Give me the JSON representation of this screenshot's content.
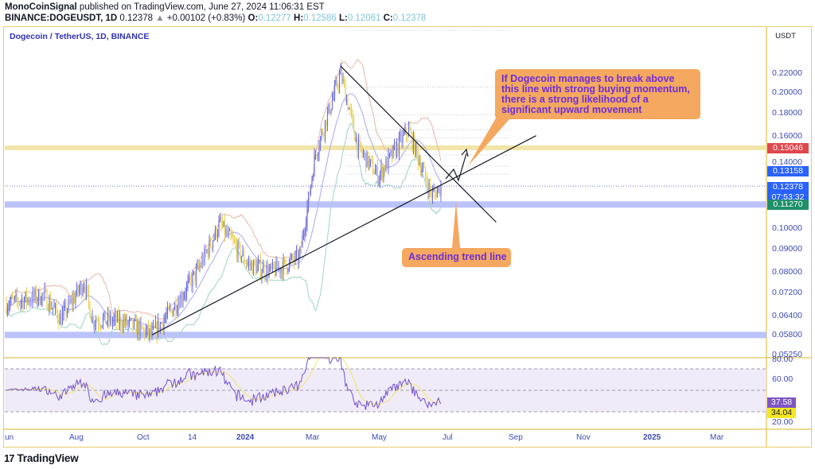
{
  "header": {
    "author": "MonoCoinSignal",
    "published_text": "published on TradingView.com, June 27, 2024 11:06:31 EST",
    "symbol": "BINANCE:DOGEUSDT, 1D",
    "last": "0.12378",
    "change_arrow": "▲",
    "change": "+0.00102 (+0.83%)",
    "o_label": "O:",
    "o": "0.12277",
    "h_label": "H:",
    "h": "0.12586",
    "l_label": "L:",
    "l": "0.12061",
    "c_label": "C:",
    "c": "0.12378"
  },
  "legend": {
    "title": "Dogecoin / TetherUS, 1D, BINANCE"
  },
  "price_scale": {
    "currency": "USDT",
    "ticks": [
      "0.22000",
      "0.20000",
      "0.18000",
      "0.16000",
      "0.14000",
      "0.10000",
      "0.09000",
      "0.08000",
      "0.07200",
      "0.06400",
      "0.05800",
      "0.05250"
    ],
    "badges": [
      {
        "label": "0.15046",
        "color": "#e0474c"
      },
      {
        "label": "0.13158",
        "color": "#2962ff"
      },
      {
        "label": "0.12378",
        "sub": "07:53:32",
        "color": "#2962ff"
      },
      {
        "label": "0.11270",
        "color": "#1f8f6a"
      }
    ]
  },
  "rsi_scale": {
    "ticks": [
      "80.00",
      "60.00",
      "20.00"
    ],
    "badges": [
      {
        "label": "37.58",
        "color": "#7e57c2",
        "text": "#ffffff"
      },
      {
        "label": "34.04",
        "color": "#f5e626",
        "text": "#131722"
      }
    ]
  },
  "time_axis": {
    "labels": [
      {
        "label": "un",
        "x": 6,
        "year": false
      },
      {
        "label": "Aug",
        "x": 87,
        "year": false
      },
      {
        "label": "Oct",
        "x": 172,
        "year": false
      },
      {
        "label": "14",
        "x": 236,
        "year": false
      },
      {
        "label": "2024",
        "x": 297,
        "year": true
      },
      {
        "label": "Mar",
        "x": 384,
        "year": false
      },
      {
        "label": "May",
        "x": 467,
        "year": false
      },
      {
        "label": "Jul",
        "x": 556,
        "year": false
      },
      {
        "label": "Sep",
        "x": 639,
        "year": false
      },
      {
        "label": "Nov",
        "x": 724,
        "year": false
      },
      {
        "label": "2025",
        "x": 808,
        "year": true
      },
      {
        "label": "Mar",
        "x": 892,
        "year": false
      }
    ]
  },
  "annotations": {
    "callout_breakout": "If Dogecoin manages to break above this line with strong buying momentum, there is a strong likelihood of a significant upward movement",
    "callout_trend": "Ascending trend line"
  },
  "footer": {
    "logo": "17",
    "brand": "TradingView"
  },
  "colors": {
    "up_candle": "#6a6ee8",
    "down_candle": "#e6cf52",
    "support_band": "#bcc3fb",
    "resistance_band": "#efe1a0",
    "rsi_line": "#7352c8",
    "rsi_ma": "#f0e46a",
    "bb_upper": "#e5b5a8",
    "bb_basis": "#a8a8f0",
    "bb_lower": "#9fd3c4",
    "frame": "#e3cf6e"
  },
  "chart_data": {
    "type": "candlestick",
    "title": "Dogecoin / TetherUS, 1D, BINANCE",
    "symbol": "BINANCE:DOGEUSDT",
    "interval": "1D",
    "xlabel": "",
    "ylabel": "USDT",
    "y_scale": "log",
    "ylim": [
      0.0525,
      0.235
    ],
    "x_ticks": [
      "Jun",
      "Aug",
      "Oct",
      "14",
      "2024",
      "Mar",
      "May",
      "Jul",
      "Sep",
      "Nov",
      "2025",
      "Mar"
    ],
    "y_ticks": [
      0.22,
      0.2,
      0.18,
      0.16,
      0.14,
      0.1,
      0.09,
      0.08,
      0.072,
      0.064,
      0.058,
      0.0525
    ],
    "ohlc_last": {
      "open": 0.12277,
      "high": 0.12586,
      "low": 0.12061,
      "close": 0.12378,
      "change": 0.00102,
      "change_pct": 0.83
    },
    "approx_close_path": [
      {
        "date": "2023-06",
        "close": 0.068
      },
      {
        "date": "2023-07-05",
        "close": 0.071
      },
      {
        "date": "2023-07-20",
        "close": 0.063
      },
      {
        "date": "2023-08-10",
        "close": 0.076
      },
      {
        "date": "2023-08-17",
        "close": 0.063
      },
      {
        "date": "2023-09-15",
        "close": 0.062
      },
      {
        "date": "2023-10-10",
        "close": 0.058
      },
      {
        "date": "2023-11-01",
        "close": 0.068
      },
      {
        "date": "2023-11-20",
        "close": 0.08
      },
      {
        "date": "2023-12-10",
        "close": 0.102
      },
      {
        "date": "2024-01-05",
        "close": 0.083
      },
      {
        "date": "2024-01-25",
        "close": 0.08
      },
      {
        "date": "2024-02-20",
        "close": 0.086
      },
      {
        "date": "2024-03-05",
        "close": 0.145
      },
      {
        "date": "2024-03-28",
        "close": 0.22
      },
      {
        "date": "2024-04-13",
        "close": 0.15
      },
      {
        "date": "2024-05-01",
        "close": 0.13
      },
      {
        "date": "2024-05-28",
        "close": 0.165
      },
      {
        "date": "2024-06-18",
        "close": 0.118
      },
      {
        "date": "2024-06-27",
        "close": 0.12378
      }
    ],
    "horizontal_levels": [
      {
        "name": "resistance",
        "value": 0.15046
      },
      {
        "name": "support",
        "value": 0.1127
      },
      {
        "name": "major-support",
        "value": 0.058
      }
    ],
    "trendlines": [
      {
        "name": "ascending",
        "from": {
          "date": "2023-10-10",
          "price": 0.058
        },
        "to": {
          "date": "2024-09-20",
          "price": 0.16
        }
      },
      {
        "name": "descending",
        "from": {
          "date": "2024-03-28",
          "price": 0.228
        },
        "to": {
          "date": "2024-08-15",
          "price": 0.103
        }
      }
    ],
    "indicators": {
      "bollinger_bands": true,
      "rsi": {
        "value": 37.58,
        "ma": 34.04,
        "levels": [
          70,
          50,
          30
        ],
        "ticks": [
          80,
          60,
          20
        ]
      }
    }
  }
}
